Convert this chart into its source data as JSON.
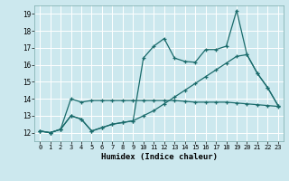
{
  "xlabel": "Humidex (Indice chaleur)",
  "bg_color": "#cce8ee",
  "line_color": "#1a6b6b",
  "grid_color": "#ffffff",
  "xlim": [
    -0.5,
    23.5
  ],
  "ylim": [
    11.5,
    19.5
  ],
  "yticks": [
    12,
    13,
    14,
    15,
    16,
    17,
    18,
    19
  ],
  "xticks": [
    0,
    1,
    2,
    3,
    4,
    5,
    6,
    7,
    8,
    9,
    10,
    11,
    12,
    13,
    14,
    15,
    16,
    17,
    18,
    19,
    20,
    21,
    22,
    23
  ],
  "line1_x": [
    0,
    1,
    2,
    3,
    4,
    5,
    6,
    7,
    8,
    9,
    10,
    11,
    12,
    13,
    14,
    15,
    16,
    17,
    18,
    19,
    20,
    21,
    22,
    23
  ],
  "line1_y": [
    12.1,
    12.0,
    12.2,
    13.0,
    12.8,
    12.1,
    12.3,
    12.5,
    12.6,
    12.7,
    16.4,
    17.1,
    17.55,
    16.4,
    16.2,
    16.15,
    16.9,
    16.9,
    17.1,
    19.2,
    16.6,
    15.5,
    14.65,
    13.6
  ],
  "line2_x": [
    0,
    1,
    2,
    3,
    4,
    5,
    6,
    7,
    8,
    9,
    10,
    11,
    12,
    13,
    14,
    15,
    16,
    17,
    18,
    19,
    20,
    21,
    22,
    23
  ],
  "line2_y": [
    12.1,
    12.0,
    12.2,
    14.0,
    13.8,
    13.9,
    13.9,
    13.9,
    13.9,
    13.9,
    13.9,
    13.9,
    13.9,
    13.9,
    13.85,
    13.8,
    13.8,
    13.8,
    13.8,
    13.75,
    13.7,
    13.65,
    13.6,
    13.55
  ],
  "line3_x": [
    0,
    1,
    2,
    3,
    4,
    5,
    6,
    7,
    8,
    9,
    10,
    11,
    12,
    13,
    14,
    15,
    16,
    17,
    18,
    19,
    20,
    21,
    22,
    23
  ],
  "line3_y": [
    12.1,
    12.0,
    12.2,
    13.0,
    12.8,
    12.1,
    12.3,
    12.5,
    12.6,
    12.7,
    13.0,
    13.3,
    13.7,
    14.1,
    14.5,
    14.9,
    15.3,
    15.7,
    16.1,
    16.5,
    16.6,
    15.5,
    14.65,
    13.6
  ]
}
